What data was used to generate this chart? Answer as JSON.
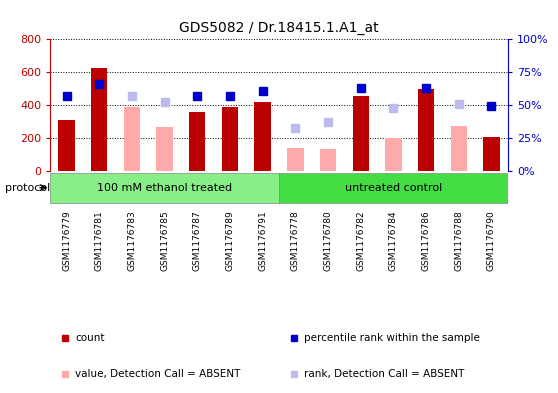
{
  "title": "GDS5082 / Dr.18415.1.A1_at",
  "samples": [
    "GSM1176779",
    "GSM1176781",
    "GSM1176783",
    "GSM1176785",
    "GSM1176787",
    "GSM1176789",
    "GSM1176791",
    "GSM1176778",
    "GSM1176780",
    "GSM1176782",
    "GSM1176784",
    "GSM1176786",
    "GSM1176788",
    "GSM1176790"
  ],
  "count_values": [
    310,
    625,
    null,
    null,
    360,
    390,
    420,
    null,
    null,
    455,
    null,
    500,
    null,
    205
  ],
  "count_absent_values": [
    null,
    null,
    390,
    265,
    null,
    null,
    null,
    140,
    135,
    null,
    200,
    null,
    275,
    null
  ],
  "rank_values": [
    57,
    66,
    null,
    null,
    57,
    57,
    61,
    null,
    null,
    63,
    null,
    63,
    null,
    49
  ],
  "rank_absent_values": [
    null,
    null,
    57,
    52,
    null,
    null,
    null,
    33,
    37,
    null,
    48,
    null,
    51,
    null
  ],
  "group1_count": 7,
  "group2_count": 7,
  "group1_label": "100 mM ethanol treated",
  "group2_label": "untreated control",
  "protocol_label": "protocol",
  "ylim_left": [
    0,
    800
  ],
  "ylim_right": [
    0,
    100
  ],
  "yticks_left": [
    0,
    200,
    400,
    600,
    800
  ],
  "yticks_right": [
    0,
    25,
    50,
    75,
    100
  ],
  "yticklabels_left": [
    "0",
    "200",
    "400",
    "600",
    "800"
  ],
  "yticklabels_right": [
    "0%",
    "25%",
    "50%",
    "75%",
    "100%"
  ],
  "color_count": "#bb0000",
  "color_rank": "#0000cc",
  "color_count_absent": "#ffaaaa",
  "color_rank_absent": "#bbbbee",
  "color_group1": "#88ee88",
  "color_group2": "#44dd44",
  "color_bg_xtick": "#cccccc",
  "bar_width": 0.5,
  "marker_size": 6
}
